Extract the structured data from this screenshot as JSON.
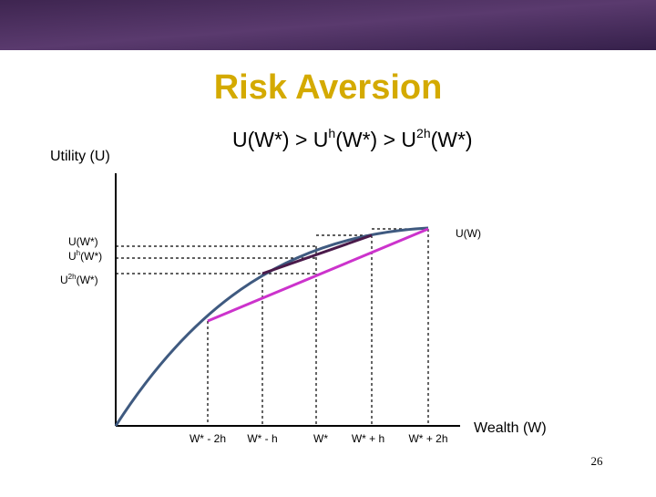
{
  "header": {
    "title": "Risk Aversion"
  },
  "inequality": [
    "U(W*) > U",
    "h",
    "(W*) > U",
    "2h",
    "(W*)"
  ],
  "y_axis_label": "Utility (U)",
  "y_labels": [
    "U(W*)",
    "U",
    "h",
    "(W*)",
    "U",
    "2h",
    "(W*)"
  ],
  "curve_label": "U(W)",
  "x_labels": [
    "W* - 2h",
    "W* - h",
    "W*",
    "W* + h",
    "W* + 2h"
  ],
  "x_axis_label": "Wealth (W)",
  "page_number": "26"
}
